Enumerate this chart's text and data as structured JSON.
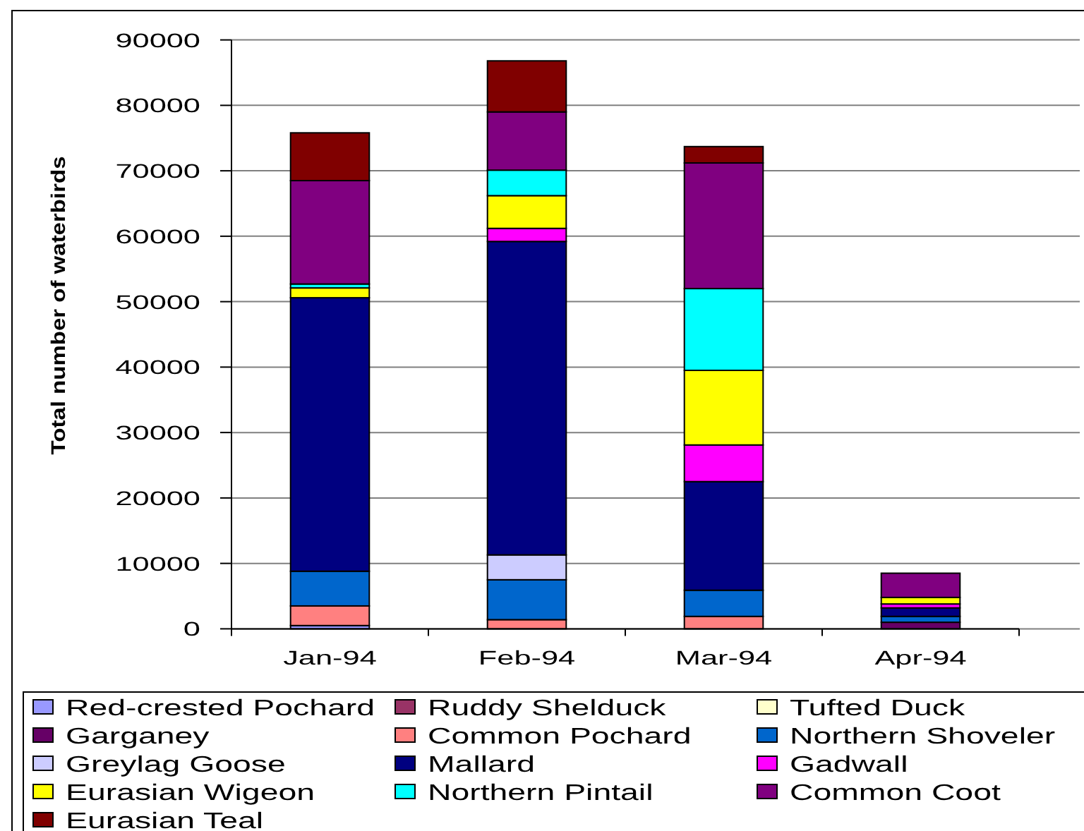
{
  "chart_data": {
    "type": "bar",
    "stacked": true,
    "categories": [
      "Jan-94",
      "Feb-94",
      "Mar-94",
      "Apr-94"
    ],
    "ylabel": "Total number of waterbirds",
    "ylim": [
      0,
      90000
    ],
    "yticks": [
      0,
      10000,
      20000,
      30000,
      40000,
      50000,
      60000,
      70000,
      80000,
      90000
    ],
    "grid": "y",
    "legend": "bottom",
    "series": [
      {
        "name": "Red-crested Pochard",
        "color": "#9999ff",
        "values": [
          500,
          null,
          null,
          null
        ]
      },
      {
        "name": "Ruddy Shelduck",
        "color": "#993366",
        "values": [
          null,
          null,
          null,
          null
        ]
      },
      {
        "name": "Tufted Duck",
        "color": "#ffffcc",
        "values": [
          null,
          null,
          null,
          null
        ]
      },
      {
        "name": "Garganey",
        "color": "#660066",
        "values": [
          null,
          null,
          null,
          1000
        ]
      },
      {
        "name": "Common Pochard",
        "color": "#ff8080",
        "values": [
          3000,
          1400,
          1900,
          null
        ]
      },
      {
        "name": "Northern Shoveler",
        "color": "#0066cc",
        "values": [
          5300,
          6100,
          4000,
          900
        ]
      },
      {
        "name": "Greylag Goose",
        "color": "#ccccff",
        "values": [
          null,
          3800,
          null,
          null
        ]
      },
      {
        "name": "Mallard",
        "color": "#000080",
        "values": [
          41800,
          47900,
          16600,
          1300
        ]
      },
      {
        "name": "Gadwall",
        "color": "#ff00ff",
        "values": [
          null,
          2000,
          5600,
          600
        ]
      },
      {
        "name": "Eurasian Wigeon",
        "color": "#ffff00",
        "values": [
          1500,
          5000,
          11400,
          1000
        ]
      },
      {
        "name": "Northern Pintail",
        "color": "#00ffff",
        "values": [
          600,
          3900,
          12500,
          null
        ]
      },
      {
        "name": "Common Coot",
        "color": "#800080",
        "values": [
          15800,
          8900,
          19200,
          3700
        ]
      },
      {
        "name": "Eurasian Teal",
        "color": "#800000",
        "values": [
          7300,
          7800,
          2500,
          null
        ]
      }
    ]
  }
}
